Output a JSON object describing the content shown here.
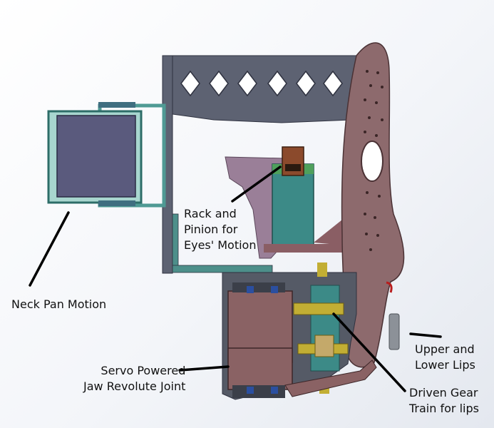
{
  "labels": {
    "rack": {
      "line1": "Rack and",
      "line2": "Pinion for",
      "line3": "Eyes' Motion"
    },
    "neck": {
      "line1": "Neck Pan Motion"
    },
    "servo": {
      "line1": "Servo Powered",
      "line2": "Jaw Revolute Joint"
    },
    "lips": {
      "line1": "Upper and",
      "line2": "Lower Lips"
    },
    "gear": {
      "line1": "Driven Gear",
      "line2": "Train for lips"
    }
  },
  "colors": {
    "frame": "#5d6272",
    "face_plate": "#8d6a6d",
    "neck_block": "#5a5a7d",
    "neck_bracket": "#4f9a94",
    "rack_block": "#3c8a87",
    "pinion": "#8b4a2c",
    "servo_body": "#8a6264",
    "gear": "#c2ae34",
    "leader": "#000000"
  }
}
